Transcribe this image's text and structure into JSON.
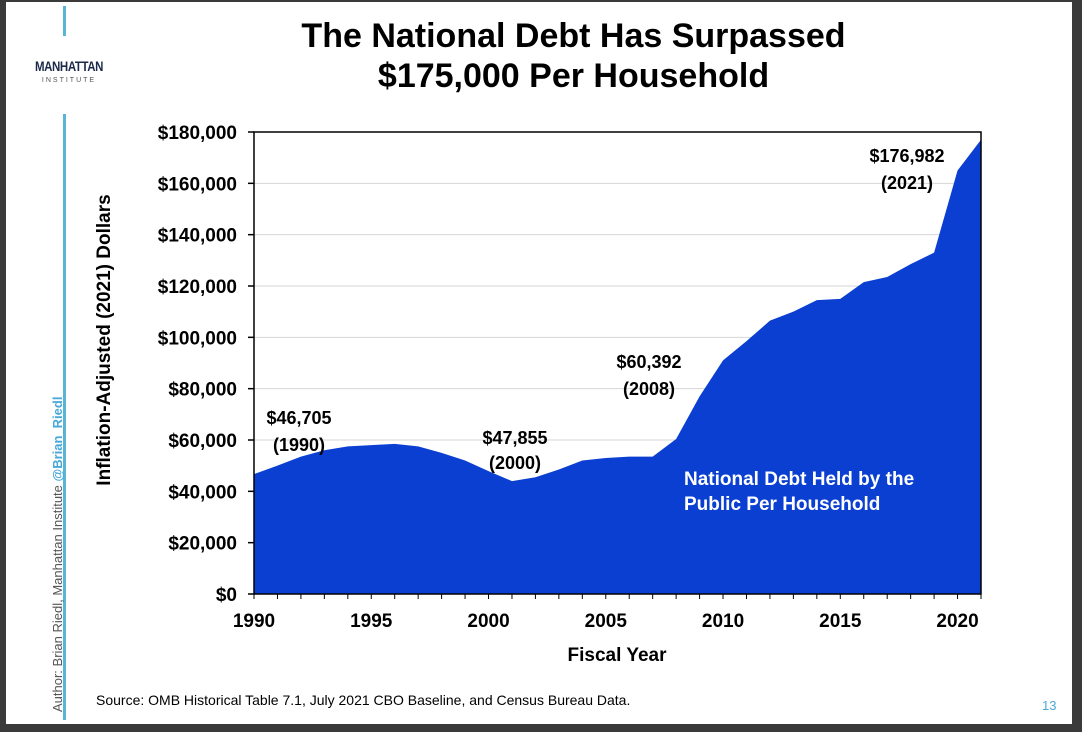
{
  "slide": {
    "title_line1": "The National Debt Has Surpassed",
    "title_line2": "$175,000 Per Household",
    "logo_main": "MANHATTAN",
    "logo_sub": "INSTITUTE",
    "side_text_prefix": "Author: Brian Riedl, Manhattan Institute",
    "side_text_handle": "@Brian_Riedl",
    "source": "Source: OMB Historical Table 7.1, July 2021 CBO Baseline, and Census Bureau Data.",
    "page_number": "13"
  },
  "colors": {
    "area_fill": "#0b3fd1",
    "accent_line": "#5ab4d6"
  },
  "chart_data": {
    "type": "area",
    "xlabel": "Fiscal Year",
    "ylabel": "Inflation-Adjusted (2021) Dollars",
    "ylim": [
      0,
      180000
    ],
    "xlim": [
      1990,
      2021
    ],
    "grid": true,
    "x_ticks": [
      1990,
      1995,
      2000,
      2005,
      2010,
      2015,
      2020
    ],
    "x_tick_labels": [
      "1990",
      "1995",
      "2000",
      "2005",
      "2010",
      "2015",
      "2020"
    ],
    "y_ticks": [
      0,
      20000,
      40000,
      60000,
      80000,
      100000,
      120000,
      140000,
      160000,
      180000
    ],
    "y_tick_labels": [
      "$0",
      "$20,000",
      "$40,000",
      "$60,000",
      "$80,000",
      "$100,000",
      "$120,000",
      "$140,000",
      "$160,000",
      "$180,000"
    ],
    "series": [
      {
        "name": "National Debt Held by the Public Per Household",
        "x": [
          1990,
          1991,
          1992,
          1993,
          1994,
          1995,
          1996,
          1997,
          1998,
          1999,
          2000,
          2001,
          2002,
          2003,
          2004,
          2005,
          2006,
          2007,
          2008,
          2009,
          2010,
          2011,
          2012,
          2013,
          2014,
          2015,
          2016,
          2017,
          2018,
          2019,
          2020,
          2021
        ],
        "values": [
          46705,
          50000,
          53500,
          56000,
          57500,
          58000,
          58500,
          57500,
          55000,
          52000,
          47855,
          44000,
          45500,
          48500,
          52000,
          53000,
          53500,
          53500,
          60392,
          77000,
          91000,
          98500,
          106500,
          110000,
          114500,
          115000,
          121500,
          123500,
          128500,
          133000,
          165000,
          176982
        ]
      }
    ],
    "annotations": [
      {
        "value": "$46,705",
        "year": "(1990)"
      },
      {
        "value": "$47,855",
        "year": "(2000)"
      },
      {
        "value": "$60,392",
        "year": "(2008)"
      },
      {
        "value": "$176,982",
        "year": "(2021)"
      }
    ],
    "series_label_line1": "National Debt Held by the",
    "series_label_line2": "Public Per Household"
  }
}
